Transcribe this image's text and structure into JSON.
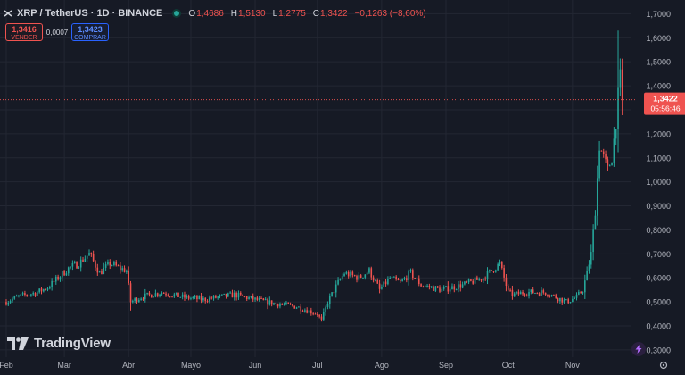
{
  "header": {
    "title": "XRP / TetherUS · 1D · BINANCE",
    "ohlc": [
      {
        "k": "O",
        "v": "1,4686"
      },
      {
        "k": "H",
        "v": "1,5130"
      },
      {
        "k": "L",
        "v": "1,2775"
      },
      {
        "k": "C",
        "v": "1,3422"
      }
    ],
    "change": "−0,1263 (−8,60%)"
  },
  "trade": {
    "sell_price": "1,3416",
    "sell_label": "VENDER",
    "spread": "0,0007",
    "buy_price": "1,3423",
    "buy_label": "COMPRAR"
  },
  "brand": {
    "name": "TradingView"
  },
  "icons": [
    "symbol-icon",
    "market-status-icon",
    "tradingview-logo-icon",
    "bolt-icon",
    "settings-gear-icon"
  ],
  "colors": {
    "up": "#26a69a",
    "down": "#ef5350",
    "background": "#161a25",
    "grid": "#232733",
    "price_line": "#ef5350"
  },
  "chart_data": {
    "type": "candlestick",
    "symbol": "XRP / TetherUS",
    "interval": "1D",
    "exchange": "BINANCE",
    "y_axis": {
      "min": 0.27,
      "max": 1.72,
      "tick_labels": [
        "1,7000",
        "1,6000",
        "1,5000",
        "1,4000",
        "1,3000",
        "1,2000",
        "1,1000",
        "1,0000",
        "0,9000",
        "0,8000",
        "0,7000",
        "0,6000",
        "0,5000",
        "0,4000",
        "0,3000"
      ],
      "tick_values": [
        1.7,
        1.6,
        1.5,
        1.4,
        1.3,
        1.2,
        1.1,
        1.0,
        0.9,
        0.8,
        0.7,
        0.6,
        0.5,
        0.4,
        0.3
      ]
    },
    "x_axis": {
      "labels": [
        "Feb",
        "Mar",
        "Abr",
        "Mayo",
        "Jun",
        "Jul",
        "Ago",
        "Sep",
        "Oct",
        "Nov"
      ],
      "label_day_index": [
        0,
        28,
        59,
        89,
        120,
        150,
        181,
        212,
        242,
        273
      ]
    },
    "last_price": "1,3422",
    "last_price_value": 1.3422,
    "countdown": "05:56:46",
    "path_days": [
      0,
      5,
      15,
      20,
      25,
      30,
      35,
      40,
      45,
      50,
      55,
      58,
      60,
      65,
      75,
      85,
      95,
      110,
      125,
      140,
      150,
      152,
      155,
      160,
      163,
      170,
      175,
      180,
      185,
      190,
      195,
      200,
      210,
      220,
      230,
      238,
      242,
      245,
      250,
      260,
      270,
      275,
      278,
      280,
      282,
      284,
      286,
      290,
      292,
      294,
      296,
      297
    ],
    "path_close": [
      0.5,
      0.52,
      0.54,
      0.56,
      0.6,
      0.64,
      0.66,
      0.7,
      0.62,
      0.66,
      0.64,
      0.63,
      0.5,
      0.52,
      0.54,
      0.52,
      0.51,
      0.53,
      0.5,
      0.48,
      0.45,
      0.42,
      0.5,
      0.58,
      0.62,
      0.6,
      0.63,
      0.55,
      0.6,
      0.58,
      0.62,
      0.57,
      0.55,
      0.57,
      0.6,
      0.66,
      0.54,
      0.53,
      0.54,
      0.54,
      0.5,
      0.52,
      0.55,
      0.62,
      0.7,
      0.88,
      1.15,
      1.05,
      1.1,
      1.25,
      1.4686,
      1.3422
    ]
  }
}
